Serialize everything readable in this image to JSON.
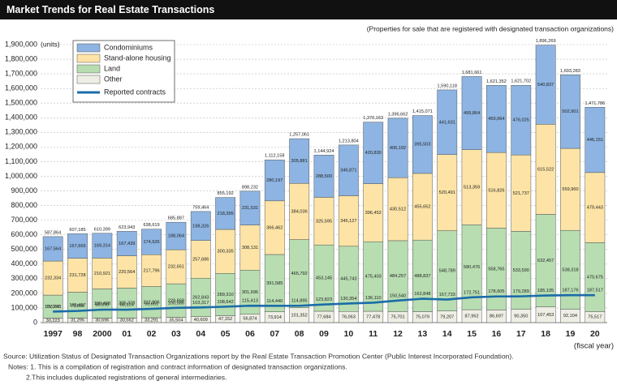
{
  "chart_data": {
    "type": "bar",
    "stacked": true,
    "title": "Market Trends for Real Estate Transactions",
    "subtitle": "(Properties for sale that are registered with designated transaction organizations)",
    "y_unit": "(units)",
    "x_label": "(fiscal year)",
    "categories": [
      "1997",
      "98",
      "2000",
      "01",
      "02",
      "03",
      "04",
      "05",
      "06",
      "07",
      "08",
      "09",
      "10",
      "11",
      "12",
      "13",
      "14",
      "15",
      "16",
      "17",
      "18",
      "19",
      "20"
    ],
    "ylim": [
      0,
      1900000
    ],
    "yticks": [
      0,
      {
        "value": 100000,
        "label": "100,000"
      },
      {
        "value": 200000,
        "label": "200,000"
      },
      {
        "value": 300000,
        "label": "300,000"
      },
      {
        "value": 400000,
        "label": "400,000"
      },
      {
        "value": 500000,
        "label": "500,000"
      },
      {
        "value": 600000,
        "label": "600,000"
      },
      {
        "value": 700000,
        "label": "700,000"
      },
      {
        "value": 800000,
        "label": "800,000"
      },
      {
        "value": 900000,
        "label": "900,000"
      },
      {
        "value": 1000000,
        "label": "1,000,000"
      },
      {
        "value": 1100000,
        "label": "1,100,000"
      },
      {
        "value": 1200000,
        "label": "1,200,000"
      },
      {
        "value": 1300000,
        "label": "1,300,000"
      },
      {
        "value": 1400000,
        "label": "1,400,000"
      },
      {
        "value": 1500000,
        "label": "1,500,000"
      },
      {
        "value": 1600000,
        "label": "1,600,000"
      },
      {
        "value": 1700000,
        "label": "1,700,000"
      },
      {
        "value": 1800000,
        "label": "1,800,000"
      },
      {
        "value": 1900000,
        "label": "1,900,000"
      }
    ],
    "grid": true,
    "legend": "upper-left",
    "series": [
      {
        "name": "Condominiums",
        "color": "#8db4e2",
        "stack_order": 3,
        "values": [
          167564,
          167665,
          169314,
          167439,
          174626,
          188064,
          198326,
          218395,
          231531,
          280197,
          305881,
          288500,
          346871,
          420830,
          406192,
          395503,
          441631,
          499864,
          459064,
          476025,
          540837,
          502901,
          446151
        ],
        "value_labels": [
          "167,564",
          "167,665",
          "169,314",
          "167,439",
          "174,626",
          "188,064",
          "198,326",
          "218,395",
          "231,531",
          "280,197",
          "305,881",
          "288,500",
          "346,871",
          "420,830",
          "406,192",
          "395,503",
          "441,631",
          "499,864",
          "459,064",
          "476,025",
          "540,837",
          "502,901",
          "446,151"
        ]
      },
      {
        "name": "Stand-alone housing",
        "color": "#fde4a6",
        "stack_order": 2,
        "values": [
          232334,
          231728,
          210921,
          220564,
          217796,
          232651,
          257686,
          300335,
          308131,
          366462,
          384036,
          325595,
          345127,
          396452,
          430512,
          455652,
          520491,
          513359,
          516826,
          521737,
          615522,
          559960,
          479443
        ],
        "value_labels": [
          "232,334",
          "231,728",
          "210,921",
          "220,564",
          "217,796",
          "232,651",
          "257,686",
          "300,335",
          "308,131",
          "366,462",
          "384,036",
          "325,595",
          "345,127",
          "396,452",
          "430,512",
          "455,652",
          "520,491",
          "513,359",
          "516,826",
          "521,737",
          "615,522",
          "559,960",
          "479,443"
        ]
      },
      {
        "name": "Land",
        "color": "#b7ddb1",
        "stack_order": 1,
        "values": [
          157743,
          176497,
          199468,
          205378,
          212906,
          229668,
          262843,
          289310,
          301696,
          391585,
          465792,
          453145,
          445743,
          475403,
          484257,
          488837,
          548789,
          580476,
          558765,
          533590,
          632457,
          538318,
          470675
        ],
        "value_labels": [
          "157,743",
          "176,497",
          "199,468",
          "205,378",
          "212,906",
          "229,668",
          "262,843",
          "289,310",
          "301,696",
          "391,585",
          "465,792",
          "453,145",
          "445,743",
          "475,403",
          "484,257",
          "488,837",
          "548,789",
          "580,476",
          "558,765",
          "533,590",
          "632,457",
          "538,318",
          "470,675"
        ]
      },
      {
        "name": "Other",
        "color": "#efeee4",
        "stack_order": 0,
        "values": [
          30223,
          31295,
          30696,
          30562,
          33291,
          35504,
          40609,
          47152,
          56874,
          73914,
          101352,
          77684,
          76063,
          77478,
          75701,
          75079,
          79207,
          87962,
          86697,
          90350,
          107453,
          92104,
          75517
        ],
        "value_labels": [
          "30,223",
          "31,295",
          "30,696",
          "30,562",
          "33,291",
          "35,504",
          "40,609",
          "47,152",
          "56,874",
          "73,914",
          "101,352",
          "77,684",
          "76,063",
          "77,478",
          "75,701",
          "75,079",
          "79,207",
          "87,962",
          "86,697",
          "90,350",
          "107,453",
          "92,104",
          "75,517"
        ]
      },
      {
        "name": "Reported contracts",
        "color": "#1b6ca8",
        "type": "line",
        "values": [
          75007,
          79591,
          88590,
          88124,
          93661,
          100586,
          103317,
          108642,
          115413,
          114440,
          114895,
          123823,
          130354,
          136110,
          150540,
          162848,
          157733,
          172751,
          178605,
          179289,
          185105,
          187176,
          187517
        ],
        "value_labels": [
          "75,007",
          "79,591",
          "88,590",
          "88,124",
          "93,661",
          "100,586",
          "103,317",
          "108,642",
          "115,413",
          "114,440",
          "114,895",
          "123,823",
          "130,354",
          "136,110",
          "150,540",
          "162,848",
          "157,733",
          "172,751",
          "178,605",
          "179,289",
          "185,105",
          "187,176",
          "187,517"
        ]
      }
    ],
    "totals": {
      "values": [
        587864,
        607185,
        610399,
        623943,
        638619,
        685887,
        759464,
        855192,
        898232,
        1112158,
        1257061,
        1144924,
        1213804,
        1370163,
        1396662,
        1415071,
        1590118,
        1681661,
        1621352,
        1621702,
        1896269,
        1693283,
        1471786
      ],
      "value_labels": [
        "587,864",
        "607,185",
        "610,399",
        "623,943",
        "638,619",
        "685,887",
        "759,464",
        "855,192",
        "898,232",
        "1,112,158",
        "1,257,061",
        "1,144,924",
        "1,213,804",
        "1,370,163",
        "1,396,662",
        "1,415,071",
        "1,590,118",
        "1,681,661",
        "1,621,352",
        "1,621,702",
        "1,896,269",
        "1,693,283",
        "1,471,786"
      ]
    },
    "source": "Source: Utilization Status of Designated Transaction Organizations report by the Real Estate Transaction Promotion Center (Public Interest Incorporated Foundation).",
    "notes": [
      "Notes: 1. This is a compilation of registration and contract information of designated transaction organizations.",
      "2.This includes duplicated registrations of general intermediaries."
    ]
  }
}
